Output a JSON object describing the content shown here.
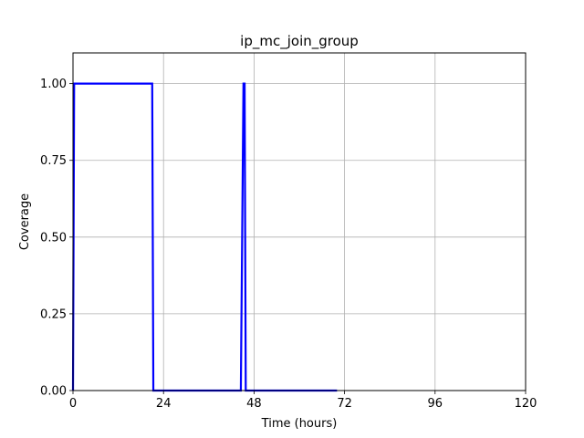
{
  "chart_data": {
    "type": "line",
    "title": "ip_mc_join_group",
    "xlabel": "Time (hours)",
    "ylabel": "Coverage",
    "xlim": [
      0,
      120
    ],
    "ylim": [
      0,
      1.1
    ],
    "xticks": [
      0,
      24,
      48,
      72,
      96,
      120
    ],
    "xtick_labels": [
      "0",
      "24",
      "48",
      "72",
      "96",
      "120"
    ],
    "yticks": [
      0,
      0.25,
      0.5,
      0.75,
      1.0
    ],
    "ytick_labels": [
      "0.00",
      "0.25",
      "0.50",
      "0.75",
      "1.00"
    ],
    "grid": true,
    "series": [
      {
        "color": "#0000ff",
        "x": [
          0,
          0.3,
          0.6,
          21.0,
          21.3,
          21.6,
          44.5,
          45.2,
          45.5,
          45.8,
          46.1,
          70
        ],
        "y": [
          0,
          1.0,
          1.0,
          1.0,
          0.0,
          0.0,
          0.0,
          1.0,
          1.0,
          0.0,
          0.0,
          0.0
        ]
      }
    ]
  }
}
